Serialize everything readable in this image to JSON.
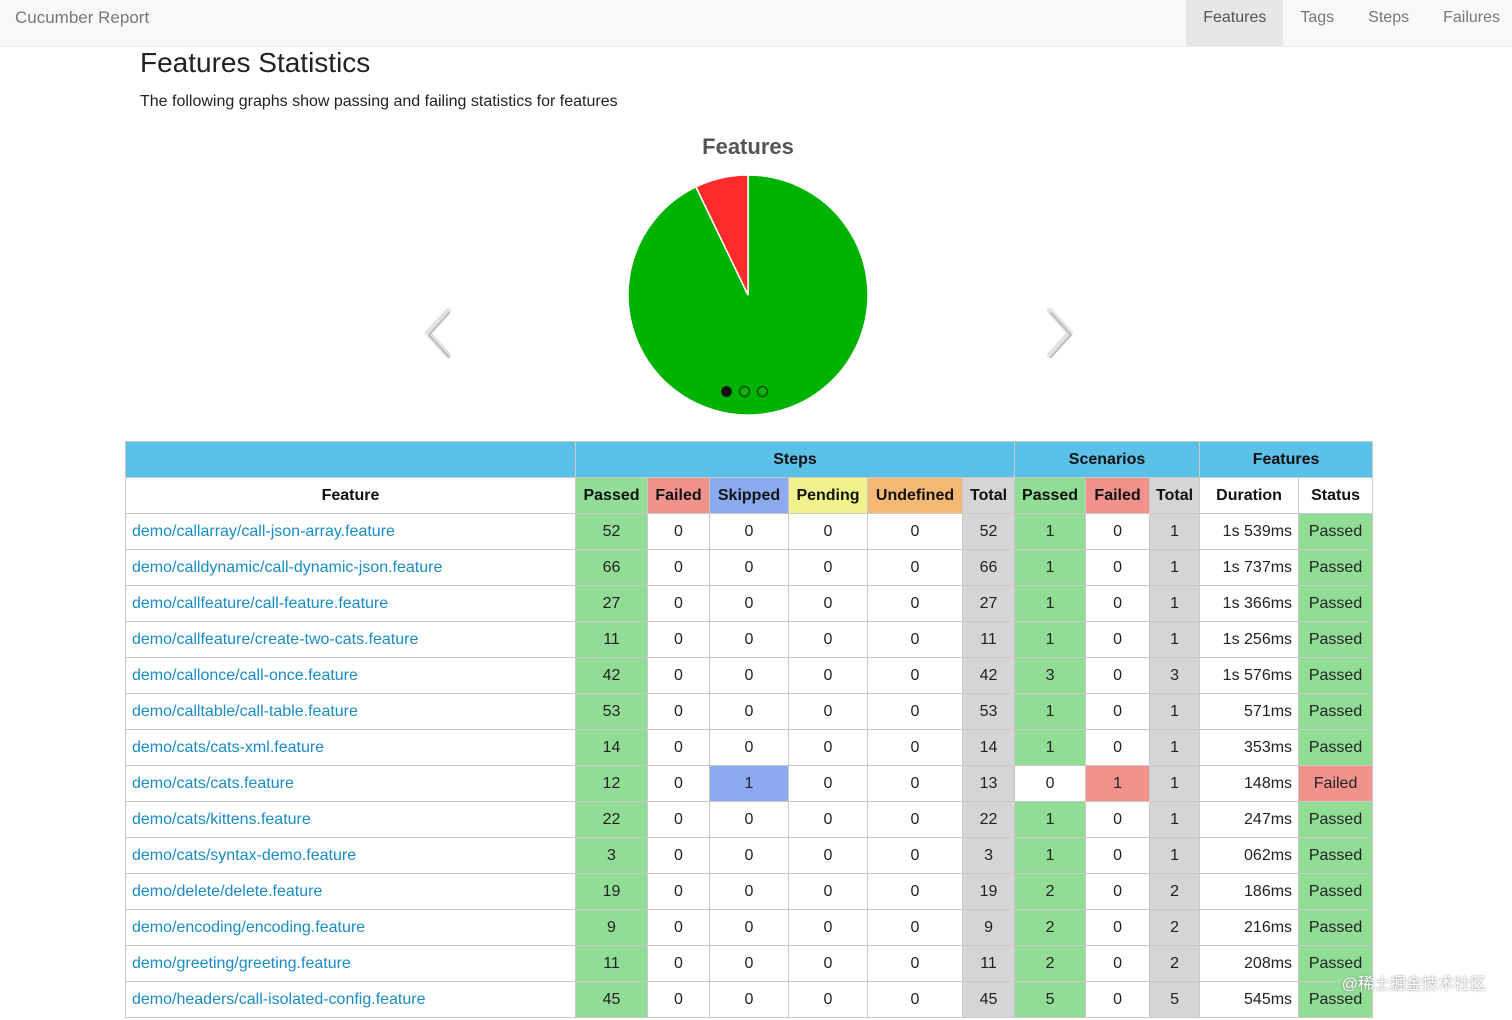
{
  "navbar": {
    "brand": "Cucumber Report",
    "items": [
      {
        "label": "Features",
        "active": true
      },
      {
        "label": "Tags",
        "active": false
      },
      {
        "label": "Steps",
        "active": false
      },
      {
        "label": "Failures",
        "active": false
      }
    ]
  },
  "page": {
    "title": "Features Statistics",
    "subtitle": "The following graphs show passing and failing statistics for features"
  },
  "chart_data": {
    "type": "pie",
    "title": "Features",
    "categories": [
      "Passed",
      "Failed"
    ],
    "values": [
      13,
      1
    ],
    "colors": [
      "#00b300",
      "#ff2a2a"
    ],
    "carousel_pages": 3,
    "carousel_active": 0
  },
  "table": {
    "group_headers": {
      "steps": "Steps",
      "scenarios": "Scenarios",
      "features": "Features"
    },
    "column_headers": {
      "feature": "Feature",
      "steps_passed": "Passed",
      "steps_failed": "Failed",
      "steps_skipped": "Skipped",
      "steps_pending": "Pending",
      "steps_undefined": "Undefined",
      "steps_total": "Total",
      "sc_passed": "Passed",
      "sc_failed": "Failed",
      "sc_total": "Total",
      "duration": "Duration",
      "status": "Status"
    },
    "rows": [
      {
        "feature": "demo/callarray/call-json-array.feature",
        "passed": "52",
        "failed": "0",
        "skipped": "0",
        "pending": "0",
        "undefined": "0",
        "total": "52",
        "sc_passed": "1",
        "sc_failed": "0",
        "sc_total": "1",
        "duration": "1s 539ms",
        "status": "Passed"
      },
      {
        "feature": "demo/calldynamic/call-dynamic-json.feature",
        "passed": "66",
        "failed": "0",
        "skipped": "0",
        "pending": "0",
        "undefined": "0",
        "total": "66",
        "sc_passed": "1",
        "sc_failed": "0",
        "sc_total": "1",
        "duration": "1s 737ms",
        "status": "Passed"
      },
      {
        "feature": "demo/callfeature/call-feature.feature",
        "passed": "27",
        "failed": "0",
        "skipped": "0",
        "pending": "0",
        "undefined": "0",
        "total": "27",
        "sc_passed": "1",
        "sc_failed": "0",
        "sc_total": "1",
        "duration": "1s 366ms",
        "status": "Passed"
      },
      {
        "feature": "demo/callfeature/create-two-cats.feature",
        "passed": "11",
        "failed": "0",
        "skipped": "0",
        "pending": "0",
        "undefined": "0",
        "total": "11",
        "sc_passed": "1",
        "sc_failed": "0",
        "sc_total": "1",
        "duration": "1s 256ms",
        "status": "Passed"
      },
      {
        "feature": "demo/callonce/call-once.feature",
        "passed": "42",
        "failed": "0",
        "skipped": "0",
        "pending": "0",
        "undefined": "0",
        "total": "42",
        "sc_passed": "3",
        "sc_failed": "0",
        "sc_total": "3",
        "duration": "1s 576ms",
        "status": "Passed"
      },
      {
        "feature": "demo/calltable/call-table.feature",
        "passed": "53",
        "failed": "0",
        "skipped": "0",
        "pending": "0",
        "undefined": "0",
        "total": "53",
        "sc_passed": "1",
        "sc_failed": "0",
        "sc_total": "1",
        "duration": "571ms",
        "status": "Passed"
      },
      {
        "feature": "demo/cats/cats-xml.feature",
        "passed": "14",
        "failed": "0",
        "skipped": "0",
        "pending": "0",
        "undefined": "0",
        "total": "14",
        "sc_passed": "1",
        "sc_failed": "0",
        "sc_total": "1",
        "duration": "353ms",
        "status": "Passed"
      },
      {
        "feature": "demo/cats/cats.feature",
        "passed": "12",
        "failed": "0",
        "skipped": "1",
        "pending": "0",
        "undefined": "0",
        "total": "13",
        "sc_passed": "0",
        "sc_failed": "1",
        "sc_total": "1",
        "duration": "148ms",
        "status": "Failed"
      },
      {
        "feature": "demo/cats/kittens.feature",
        "passed": "22",
        "failed": "0",
        "skipped": "0",
        "pending": "0",
        "undefined": "0",
        "total": "22",
        "sc_passed": "1",
        "sc_failed": "0",
        "sc_total": "1",
        "duration": "247ms",
        "status": "Passed"
      },
      {
        "feature": "demo/cats/syntax-demo.feature",
        "passed": "3",
        "failed": "0",
        "skipped": "0",
        "pending": "0",
        "undefined": "0",
        "total": "3",
        "sc_passed": "1",
        "sc_failed": "0",
        "sc_total": "1",
        "duration": "062ms",
        "status": "Passed"
      },
      {
        "feature": "demo/delete/delete.feature",
        "passed": "19",
        "failed": "0",
        "skipped": "0",
        "pending": "0",
        "undefined": "0",
        "total": "19",
        "sc_passed": "2",
        "sc_failed": "0",
        "sc_total": "2",
        "duration": "186ms",
        "status": "Passed"
      },
      {
        "feature": "demo/encoding/encoding.feature",
        "passed": "9",
        "failed": "0",
        "skipped": "0",
        "pending": "0",
        "undefined": "0",
        "total": "9",
        "sc_passed": "2",
        "sc_failed": "0",
        "sc_total": "2",
        "duration": "216ms",
        "status": "Passed"
      },
      {
        "feature": "demo/greeting/greeting.feature",
        "passed": "11",
        "failed": "0",
        "skipped": "0",
        "pending": "0",
        "undefined": "0",
        "total": "11",
        "sc_passed": "2",
        "sc_failed": "0",
        "sc_total": "2",
        "duration": "208ms",
        "status": "Passed"
      },
      {
        "feature": "demo/headers/call-isolated-config.feature",
        "passed": "45",
        "failed": "0",
        "skipped": "0",
        "pending": "0",
        "undefined": "0",
        "total": "45",
        "sc_passed": "5",
        "sc_failed": "0",
        "sc_total": "5",
        "duration": "545ms",
        "status": "Passed"
      }
    ]
  },
  "watermark": "@稀土掘金技术社区"
}
